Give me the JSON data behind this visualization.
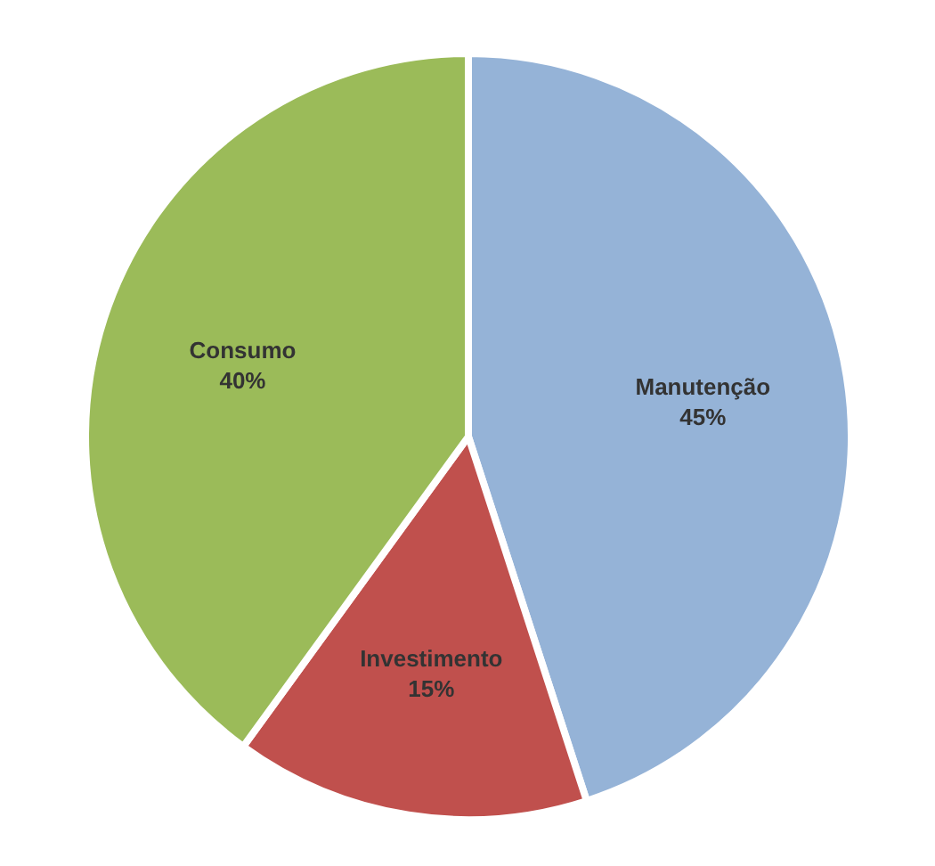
{
  "chart_data": {
    "type": "pie",
    "categories": [
      "Manutenção",
      "Investimento",
      "Consumo"
    ],
    "values": [
      45,
      15,
      40
    ],
    "colors": [
      "#95b3d7",
      "#c0504d",
      "#9bbb59"
    ],
    "value_labels": [
      "45%",
      "15%",
      "40%"
    ]
  }
}
